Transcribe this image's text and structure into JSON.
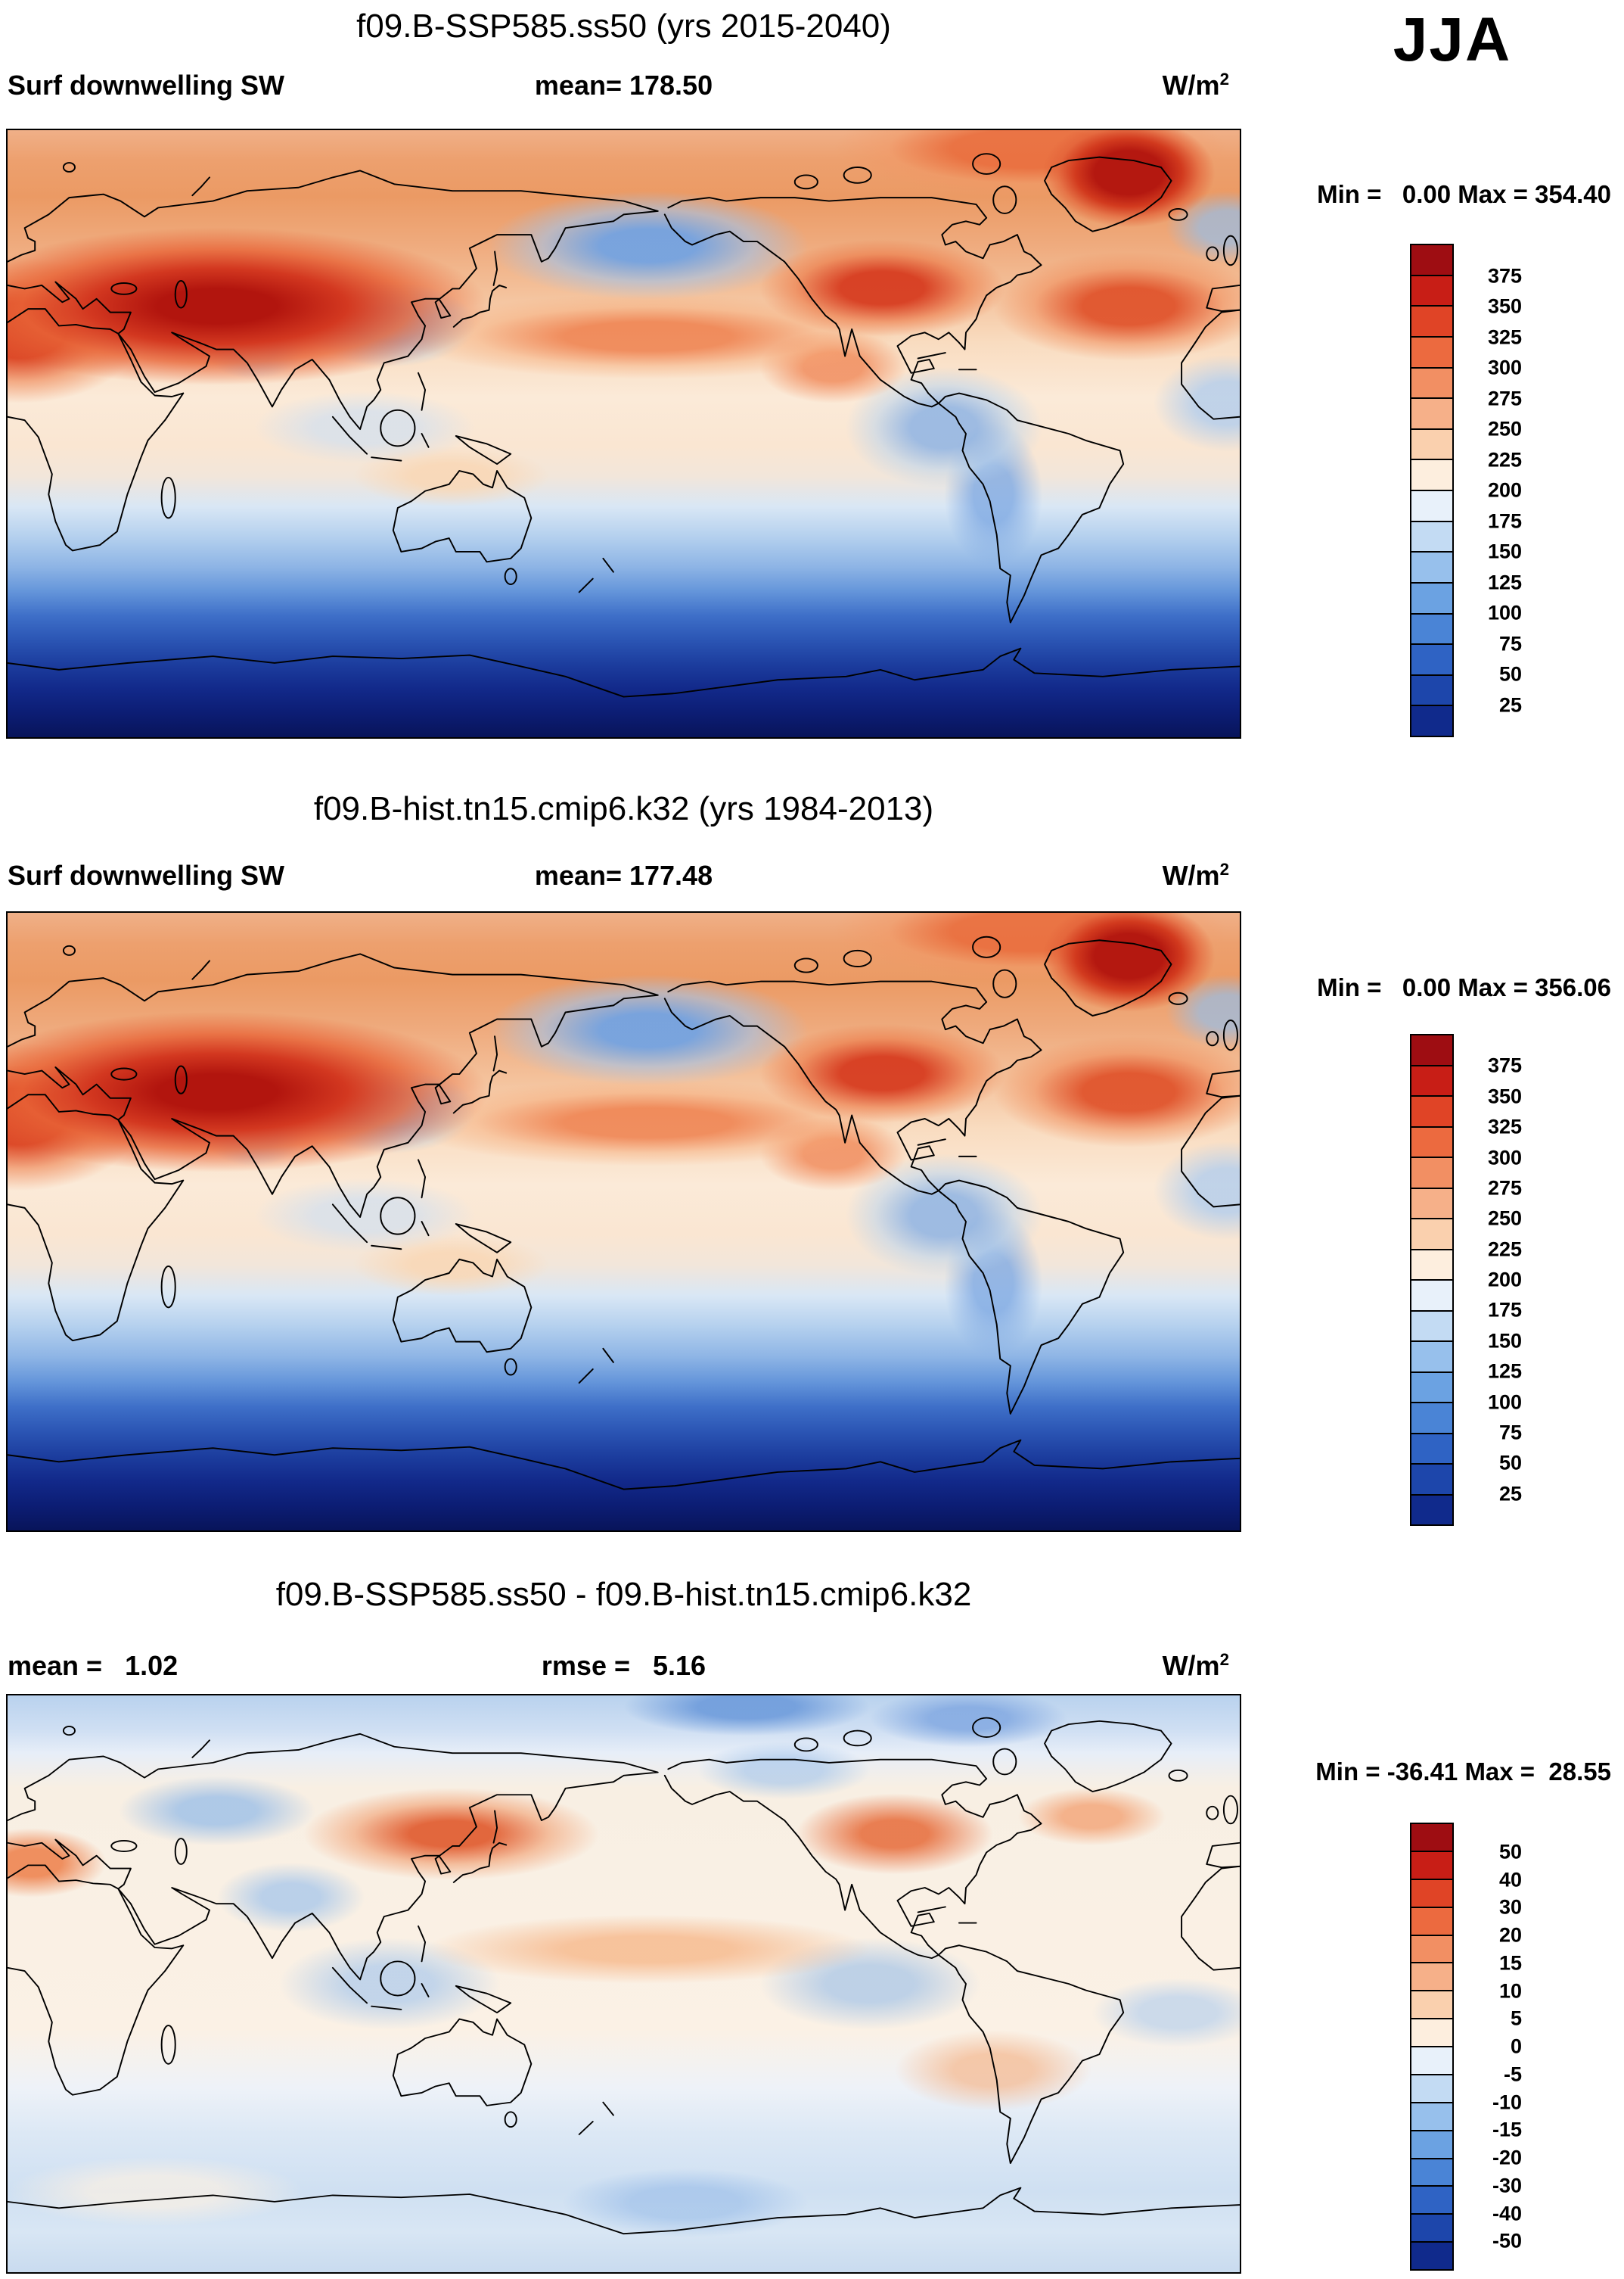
{
  "season": "JJA",
  "units": {
    "base": "W/m",
    "exp": "2"
  },
  "panels": [
    {
      "title": "f09.B-SSP585.ss50 (yrs 2015-2040)",
      "left_label": "Surf downwelling SW",
      "center_label": "mean= 178.50",
      "minmax": "Min =   0.00 Max = 354.40",
      "colorbar": {
        "labels": [
          "375",
          "350",
          "325",
          "300",
          "275",
          "250",
          "225",
          "200",
          "175",
          "150",
          "125",
          "100",
          "75",
          "50",
          "25"
        ],
        "colors_top_to_bottom": [
          "#9e0d12",
          "#c81e16",
          "#e04426",
          "#ec6a3f",
          "#f28f63",
          "#f6b089",
          "#fad0ae",
          "#fdeede",
          "#e8f1fa",
          "#c3dbf3",
          "#97c0ec",
          "#6ba2e2",
          "#4a84d6",
          "#2f63c4",
          "#1d46ab",
          "#102a8c"
        ]
      }
    },
    {
      "title": "f09.B-hist.tn15.cmip6.k32 (yrs 1984-2013)",
      "left_label": "Surf downwelling SW",
      "center_label": "mean= 177.48",
      "minmax": "Min =   0.00 Max = 356.06",
      "colorbar": {
        "labels": [
          "375",
          "350",
          "325",
          "300",
          "275",
          "250",
          "225",
          "200",
          "175",
          "150",
          "125",
          "100",
          "75",
          "50",
          "25"
        ],
        "colors_top_to_bottom": [
          "#9e0d12",
          "#c81e16",
          "#e04426",
          "#ec6a3f",
          "#f28f63",
          "#f6b089",
          "#fad0ae",
          "#fdeede",
          "#e8f1fa",
          "#c3dbf3",
          "#97c0ec",
          "#6ba2e2",
          "#4a84d6",
          "#2f63c4",
          "#1d46ab",
          "#102a8c"
        ]
      }
    },
    {
      "title": "f09.B-SSP585.ss50 - f09.B-hist.tn15.cmip6.k32",
      "left_label": "mean =   1.02",
      "center_label": "rmse =   5.16",
      "minmax": "Min = -36.41 Max =  28.55",
      "colorbar": {
        "labels": [
          "50",
          "40",
          "30",
          "20",
          "15",
          "10",
          "5",
          "0",
          "-5",
          "-10",
          "-15",
          "-20",
          "-30",
          "-40",
          "-50"
        ],
        "colors_top_to_bottom": [
          "#9e0d12",
          "#c81e16",
          "#e04426",
          "#ec6a3f",
          "#f28f63",
          "#f6b089",
          "#fad0ae",
          "#fdeede",
          "#e8f1fa",
          "#c3dbf3",
          "#97c0ec",
          "#6ba2e2",
          "#4a84d6",
          "#2f63c4",
          "#1d46ab",
          "#102a8c"
        ]
      }
    }
  ],
  "chart_data": [
    {
      "type": "heatmap",
      "subtype": "filled-contour-global-map",
      "title": "f09.B-SSP585.ss50 (yrs 2015-2040)",
      "variable": "Surf downwelling SW",
      "season": "JJA",
      "units": "W/m^2",
      "projection": "global equirectangular, Pacific-centered (lon 0-360E, lat 90S-90N)",
      "mean": 178.5,
      "min": 0.0,
      "max": 354.4,
      "contour_levels": [
        25,
        50,
        75,
        100,
        125,
        150,
        175,
        200,
        225,
        250,
        275,
        300,
        325,
        350,
        375
      ],
      "palette_top_to_bottom": [
        "#9e0d12",
        "#c81e16",
        "#e04426",
        "#ec6a3f",
        "#f28f63",
        "#f6b089",
        "#fad0ae",
        "#fdeede",
        "#e8f1fa",
        "#c3dbf3",
        "#97c0ec",
        "#6ba2e2",
        "#4a84d6",
        "#2f63c4",
        "#1d46ab",
        "#102a8c"
      ],
      "pattern_notes": "High SW (300-375) over N Africa, Middle East, Central Asia/Tibet, SW North America, subtropical N Atlantic and Greenland; broad 250-300 across NH mid-latitudes; relative lows (150-200) over N Pacific, E Asia and E equatorial Pacific; values decrease poleward of 20S to near 0 (polar night) over Antarctica"
    },
    {
      "type": "heatmap",
      "subtype": "filled-contour-global-map",
      "title": "f09.B-hist.tn15.cmip6.k32 (yrs 1984-2013)",
      "variable": "Surf downwelling SW",
      "season": "JJA",
      "units": "W/m^2",
      "projection": "global equirectangular, Pacific-centered (lon 0-360E, lat 90S-90N)",
      "mean": 177.48,
      "min": 0.0,
      "max": 356.06,
      "contour_levels": [
        25,
        50,
        75,
        100,
        125,
        150,
        175,
        200,
        225,
        250,
        275,
        300,
        325,
        350,
        375
      ],
      "palette_top_to_bottom": [
        "#9e0d12",
        "#c81e16",
        "#e04426",
        "#ec6a3f",
        "#f28f63",
        "#f6b089",
        "#fad0ae",
        "#fdeede",
        "#e8f1fa",
        "#c3dbf3",
        "#97c0ec",
        "#6ba2e2",
        "#4a84d6",
        "#2f63c4",
        "#1d46ab",
        "#102a8c"
      ],
      "pattern_notes": "Nearly identical pattern to SSP585 panel: subtropical NH maxima over N Africa/Central Asia, Greenland maximum, N Pacific relative low, dark-blue Southern Ocean/Antarctic minimum"
    },
    {
      "type": "heatmap",
      "subtype": "filled-contour-global-map-difference",
      "title": "f09.B-SSP585.ss50 - f09.B-hist.tn15.cmip6.k32",
      "variable": "Surf downwelling SW difference",
      "season": "JJA",
      "units": "W/m^2",
      "projection": "global equirectangular, Pacific-centered (lon 0-360E, lat 90S-90N)",
      "mean": 1.02,
      "rmse": 5.16,
      "min": -36.41,
      "max": 28.55,
      "contour_levels": [
        -50,
        -40,
        -30,
        -20,
        -15,
        -10,
        -5,
        0,
        5,
        10,
        15,
        20,
        30,
        40,
        50
      ],
      "palette_top_to_bottom": [
        "#9e0d12",
        "#c81e16",
        "#e04426",
        "#ec6a3f",
        "#f28f63",
        "#f6b089",
        "#fad0ae",
        "#fdeede",
        "#e8f1fa",
        "#c3dbf3",
        "#97c0ec",
        "#6ba2e2",
        "#4a84d6",
        "#2f63c4",
        "#1d46ab",
        "#102a8c"
      ],
      "pattern_notes": "Mostly within +/-5; positive differences (+10 to +25) over NW Pacific/Japan, E North America and N Africa; negative differences (-5 to -20) over the Arctic, Central Asia, maritime continent, E equatorial Pacific and Southern Ocean"
    }
  ]
}
